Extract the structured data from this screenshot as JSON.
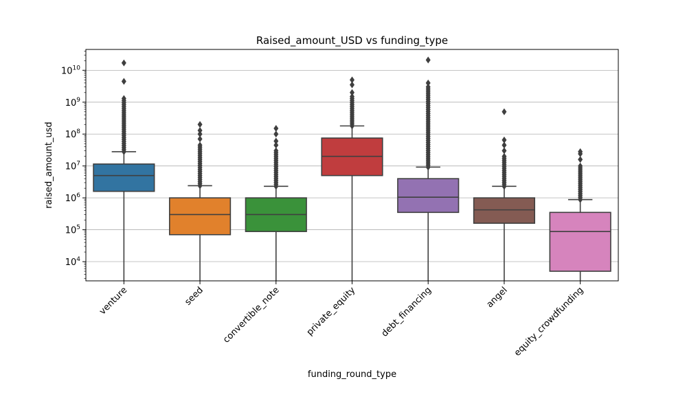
{
  "chart_data": {
    "type": "box",
    "title": "Raised_amount_USD vs funding_type",
    "xlabel": "funding_round_type",
    "ylabel": "raised_amount_usd",
    "yscale": "log",
    "ylim": [
      2500,
      45000000000
    ],
    "grid": "y-major",
    "yticks": [
      {
        "value": 10000,
        "base": "10",
        "exp": "4"
      },
      {
        "value": 100000,
        "base": "10",
        "exp": "5"
      },
      {
        "value": 1000000,
        "base": "10",
        "exp": "6"
      },
      {
        "value": 10000000,
        "base": "10",
        "exp": "7"
      },
      {
        "value": 100000000,
        "base": "10",
        "exp": "8"
      },
      {
        "value": 1000000000,
        "base": "10",
        "exp": "9"
      },
      {
        "value": 10000000000,
        "base": "10",
        "exp": "10"
      }
    ],
    "categories": [
      "venture",
      "seed",
      "convertible_note",
      "private_equity",
      "debt_financing",
      "angel",
      "equity_crowdfunding"
    ],
    "boxes": [
      {
        "category": "venture",
        "color": "#3274a1",
        "q1": 1600000,
        "median": 5000000,
        "q3": 11500000,
        "whisker_low": 2500,
        "whisker_high": 28000000,
        "flier_range": [
          28000000,
          1300000000
        ],
        "outliers": [
          4500000000,
          17000000000
        ]
      },
      {
        "category": "seed",
        "color": "#e1812c",
        "q1": 70000,
        "median": 300000,
        "q3": 1000000,
        "whisker_low": 2500,
        "whisker_high": 2400000,
        "flier_range": [
          2400000,
          45000000
        ],
        "outliers": [
          70000000,
          100000000,
          130000000,
          200000000
        ]
      },
      {
        "category": "convertible_note",
        "color": "#3a923a",
        "q1": 88000,
        "median": 300000,
        "q3": 1000000,
        "whisker_low": 2500,
        "whisker_high": 2300000,
        "flier_range": [
          2300000,
          30000000
        ],
        "outliers": [
          45000000,
          60000000,
          100000000,
          150000000
        ]
      },
      {
        "category": "private_equity",
        "color": "#c03d3e",
        "q1": 5000000,
        "median": 20000000,
        "q3": 75000000,
        "whisker_low": 2500,
        "whisker_high": 180000000,
        "flier_range": [
          180000000,
          1500000000
        ],
        "outliers": [
          2000000000,
          3500000000,
          5000000000
        ]
      },
      {
        "category": "debt_financing",
        "color": "#9372b2",
        "q1": 350000,
        "median": 1050000,
        "q3": 4000000,
        "whisker_low": 2500,
        "whisker_high": 9200000,
        "flier_range": [
          9200000,
          3000000000
        ],
        "outliers": [
          4000000000,
          21000000000
        ]
      },
      {
        "category": "angel",
        "color": "#845b53",
        "q1": 160000,
        "median": 420000,
        "q3": 1000000,
        "whisker_low": 2500,
        "whisker_high": 2300000,
        "flier_range": [
          2300000,
          20000000
        ],
        "outliers": [
          30000000,
          45000000,
          65000000,
          500000000
        ]
      },
      {
        "category": "equity_crowdfunding",
        "color": "#d684bd",
        "q1": 5000,
        "median": 88000,
        "q3": 350000,
        "whisker_low": 2500,
        "whisker_high": 880000,
        "flier_range": [
          880000,
          10000000
        ],
        "outliers": [
          16000000,
          24000000,
          28000000
        ]
      }
    ]
  }
}
